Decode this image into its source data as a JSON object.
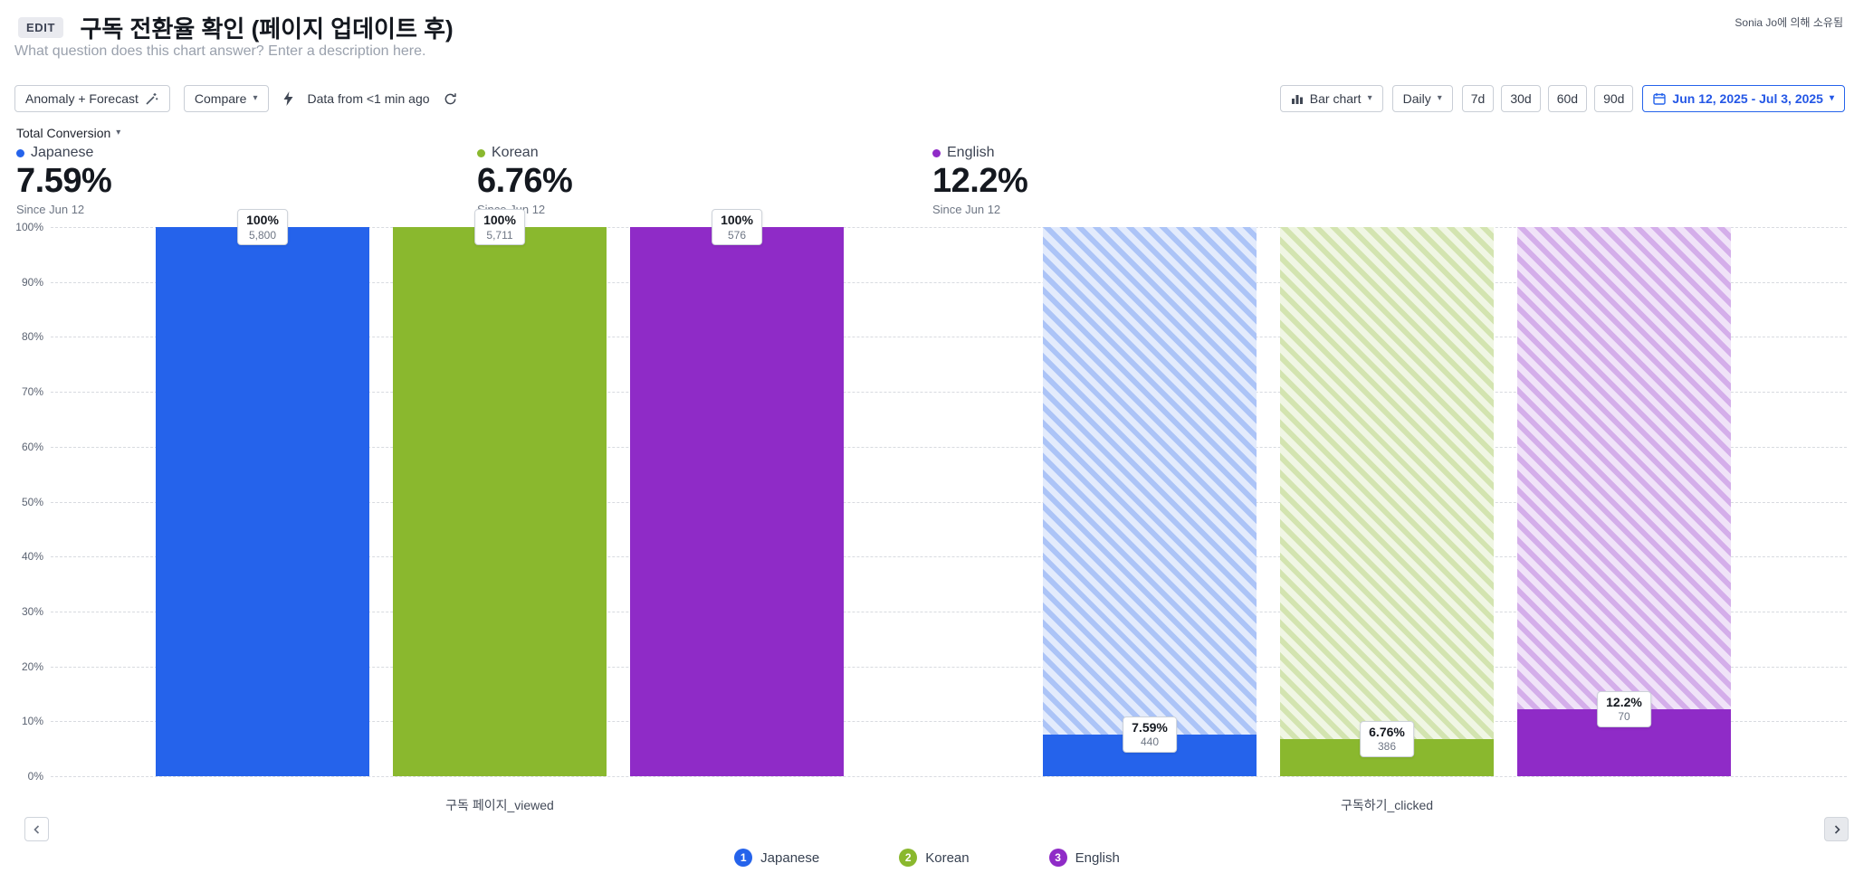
{
  "header": {
    "edit_badge": "EDIT",
    "title": "구독 전환율 확인 (페이지 업데이트 후)",
    "description_placeholder": "What question does this chart answer? Enter a description here.",
    "owner": "Sonia Jo에 의해 소유됨"
  },
  "toolbar": {
    "anomaly_forecast": "Anomaly + Forecast",
    "compare": "Compare",
    "data_freshness": "Data from <1 min ago",
    "chart_type": "Bar chart",
    "granularity": "Daily",
    "ranges": [
      "7d",
      "30d",
      "60d",
      "90d"
    ],
    "date_range": "Jun 12, 2025 - Jul 3, 2025"
  },
  "controls": {
    "metric_selector": "Total Conversion"
  },
  "icons": {
    "chevron_down": "▾"
  },
  "summary": [
    {
      "name": "Japanese",
      "value": "7.59%",
      "since": "Since Jun 12",
      "color": "#2563eb"
    },
    {
      "name": "Korean",
      "value": "6.76%",
      "since": "Since Jun 12",
      "color": "#8ab82e"
    },
    {
      "name": "English",
      "value": "12.2%",
      "since": "Since Jun 12",
      "color": "#8f2bc7"
    }
  ],
  "chart_data": {
    "type": "bar",
    "title": "구독 전환율 확인 (페이지 업데이트 후)",
    "categories": [
      "구독 페이지_viewed",
      "구독하기_clicked"
    ],
    "series": [
      {
        "name": "Japanese",
        "color": "#2563eb",
        "values": [
          100,
          7.59
        ],
        "counts": [
          5800,
          440
        ],
        "value_labels": [
          "100%",
          "7.59%"
        ],
        "count_labels": [
          "5,800",
          "440"
        ]
      },
      {
        "name": "Korean",
        "color": "#8ab82e",
        "values": [
          100,
          6.76
        ],
        "counts": [
          5711,
          386
        ],
        "value_labels": [
          "100%",
          "6.76%"
        ],
        "count_labels": [
          "5,711",
          "386"
        ]
      },
      {
        "name": "English",
        "color": "#8f2bc7",
        "values": [
          100,
          12.2
        ],
        "counts": [
          576,
          70
        ],
        "value_labels": [
          "100%",
          "12.2%"
        ],
        "count_labels": [
          "576",
          "70"
        ]
      }
    ],
    "ylabel_ticks": [
      "0%",
      "10%",
      "20%",
      "30%",
      "40%",
      "50%",
      "60%",
      "70%",
      "80%",
      "90%",
      "100%"
    ],
    "ylim": [
      0,
      100
    ],
    "grid": true,
    "legend_position": "bottom"
  },
  "legend": [
    {
      "num": "1",
      "label": "Japanese",
      "color": "#2563eb"
    },
    {
      "num": "2",
      "label": "Korean",
      "color": "#8ab82e"
    },
    {
      "num": "3",
      "label": "English",
      "color": "#8f2bc7"
    }
  ]
}
